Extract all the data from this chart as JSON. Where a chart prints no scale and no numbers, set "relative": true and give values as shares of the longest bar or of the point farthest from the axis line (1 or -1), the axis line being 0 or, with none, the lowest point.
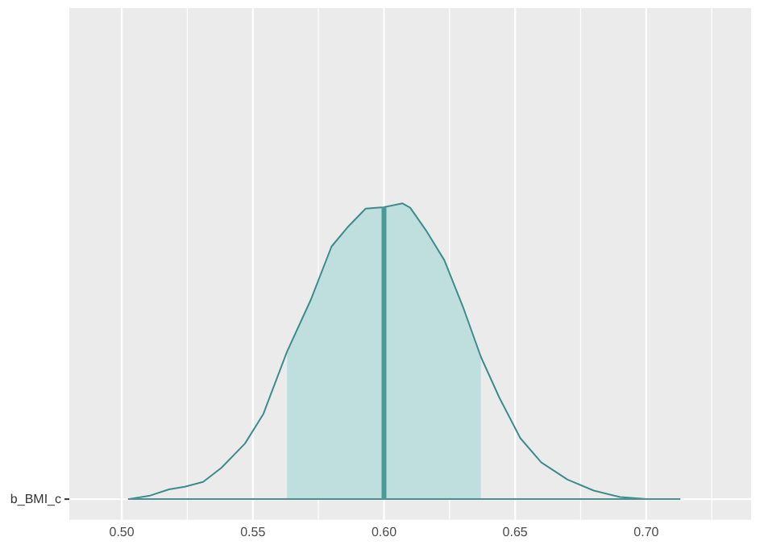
{
  "chart_data": {
    "type": "line",
    "relative": true,
    "grid": "x",
    "legend": false,
    "marker": "none",
    "line_style": "solid",
    "xlim": [
      0.48,
      0.74
    ],
    "xticks": [
      {
        "value": 0.5,
        "label": "0.50"
      },
      {
        "value": 0.525,
        "label": null
      },
      0.55,
      {
        "value": 0.575,
        "label": null
      },
      {
        "value": 0.6,
        "label": "0.60"
      },
      {
        "value": 0.625,
        "label": null
      },
      0.65,
      {
        "value": 0.675,
        "label": null
      },
      {
        "value": 0.7,
        "label": "0.70"
      },
      {
        "value": 0.725,
        "label": null
      }
    ],
    "series": [
      {
        "type": "area",
        "color": "#bfdfdf",
        "x": [
          0.563,
          0.572,
          0.58,
          0.586,
          0.593,
          0.6,
          0.607,
          0.61,
          0.616,
          0.623,
          0.63,
          0.637
        ],
        "values": [
          0.498,
          0.672,
          0.854,
          0.918,
          0.982,
          0.987,
          1,
          0.985,
          0.909,
          0.808,
          0.653,
          0.48
        ]
      },
      {
        "name": "b_BMI_c",
        "color": "#3d8c8c",
        "x": [
          0.5024,
          0.5104,
          0.518,
          0.524,
          0.531,
          0.538,
          0.547,
          0.554,
          0.563,
          0.572,
          0.58,
          0.586,
          0.593,
          0.6,
          0.607,
          0.61,
          0.616,
          0.623,
          0.63,
          0.637,
          0.644,
          0.652,
          0.66,
          0.67,
          0.68,
          0.69,
          0.7,
          0.713
        ],
        "values": [
          0,
          0.011,
          0.033,
          0.042,
          0.058,
          0.106,
          0.188,
          0.288,
          0.498,
          0.672,
          0.854,
          0.918,
          0.982,
          0.987,
          1,
          0.985,
          0.909,
          0.808,
          0.653,
          0.48,
          0.343,
          0.206,
          0.124,
          0.066,
          0.029,
          0.007,
          0,
          0
        ]
      }
    ],
    "ref_lines": [
      {
        "axis": "x",
        "value": 0.6,
        "color": "#4a9a98"
      }
    ]
  }
}
